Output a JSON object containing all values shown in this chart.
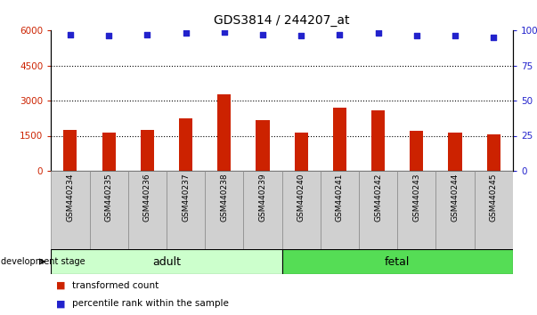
{
  "title": "GDS3814 / 244207_at",
  "samples": [
    "GSM440234",
    "GSM440235",
    "GSM440236",
    "GSM440237",
    "GSM440238",
    "GSM440239",
    "GSM440240",
    "GSM440241",
    "GSM440242",
    "GSM440243",
    "GSM440244",
    "GSM440245"
  ],
  "bar_values": [
    1750,
    1650,
    1730,
    2250,
    3250,
    2150,
    1620,
    2700,
    2600,
    1700,
    1650,
    1550
  ],
  "percentile_values": [
    97,
    96,
    97,
    98,
    99,
    97,
    96,
    97,
    98,
    96,
    96,
    95
  ],
  "bar_color": "#cc2200",
  "dot_color": "#2222cc",
  "ylim_left": [
    0,
    6000
  ],
  "ylim_right": [
    0,
    100
  ],
  "yticks_left": [
    0,
    1500,
    3000,
    4500,
    6000
  ],
  "ytick_labels_left": [
    "0",
    "1500",
    "3000",
    "4500",
    "6000"
  ],
  "yticks_right": [
    0,
    25,
    50,
    75,
    100
  ],
  "ytick_labels_right": [
    "0",
    "25",
    "50",
    "75",
    "100%"
  ],
  "grid_lines": [
    1500,
    3000,
    4500
  ],
  "adult_count": 6,
  "fetal_count": 6,
  "adult_label": "adult",
  "fetal_label": "fetal",
  "adult_color": "#ccffcc",
  "fetal_color": "#55dd55",
  "stage_label": "development stage",
  "legend_bar_label": "transformed count",
  "legend_dot_label": "percentile rank within the sample",
  "col_bg_color": "#d0d0d0",
  "plot_bg_color": "#ffffff",
  "title_fontsize": 10,
  "tick_fontsize": 7.5
}
